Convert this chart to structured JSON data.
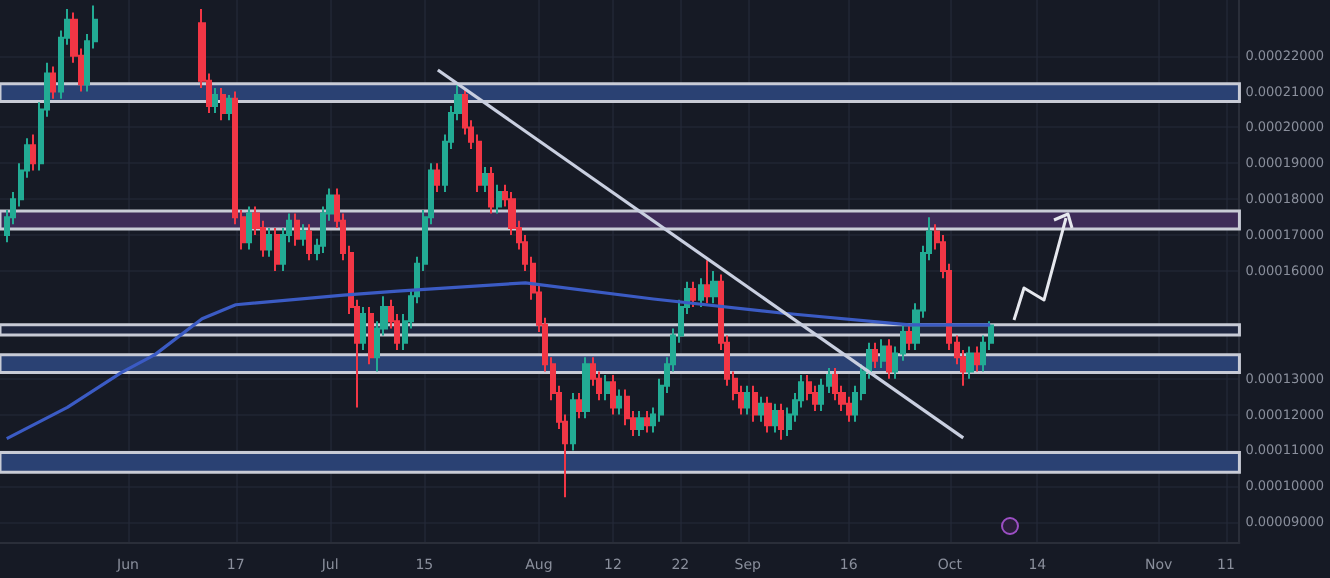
{
  "chart_data": {
    "type": "candlestick",
    "grid": true,
    "xlim": [
      "--05-13",
      "--11-13"
    ],
    "xticks": [
      {
        "value": "--06-01",
        "label": "Jun"
      },
      {
        "value": "--06-17",
        "label": "17"
      },
      {
        "value": "--07-01",
        "label": "Jul"
      },
      {
        "value": "--07-15",
        "label": "15"
      },
      {
        "value": "--08-01",
        "label": "Aug"
      },
      {
        "value": "--08-12",
        "label": "12"
      },
      {
        "value": "--08-22",
        "label": "22"
      },
      {
        "value": "--09-01",
        "label": "Sep"
      },
      {
        "value": "--09-16",
        "label": "16"
      },
      {
        "value": "--10-01",
        "label": "Oct"
      },
      {
        "value": "--10-14",
        "label": "14"
      },
      {
        "value": "--11-01",
        "label": "Nov"
      },
      {
        "value": "--11-11",
        "label": "11"
      }
    ],
    "ylim": [
      8.45e-05,
      0.0002355
    ],
    "yticks": [
      {
        "value": 9e-05,
        "label": "0.00009000"
      },
      {
        "value": 0.0001,
        "label": "0.00010000"
      },
      {
        "value": 0.00011,
        "label": "0.00011000"
      },
      {
        "value": 0.00012,
        "label": "0.00012000"
      },
      {
        "value": 0.00013,
        "label": "0.00013000"
      },
      {
        "value": 0.00016,
        "label": "0.00016000"
      },
      {
        "value": 0.00017,
        "label": "0.00017000"
      },
      {
        "value": 0.00018,
        "label": "0.00018000"
      },
      {
        "value": 0.00019,
        "label": "0.00019000"
      },
      {
        "value": 0.0002,
        "label": "0.00020000"
      },
      {
        "value": 0.00021,
        "label": "0.00021000"
      },
      {
        "value": 0.00022,
        "label": "0.00022000"
      }
    ],
    "x": [
      "--05-14",
      "--05-15",
      "--05-16",
      "--05-17",
      "--05-18",
      "--05-19",
      "--05-20",
      "--05-21",
      "--05-22",
      "--05-23",
      "--05-24",
      "--05-25",
      "--05-26",
      "--05-27",
      "--06-12",
      "--06-13",
      "--06-14",
      "--06-15",
      "--06-16",
      "--06-17",
      "--06-18",
      "--06-19",
      "--06-20",
      "--06-21",
      "--06-22",
      "--06-23",
      "--06-24",
      "--06-25",
      "--06-26",
      "--06-27",
      "--06-28",
      "--06-29",
      "--06-30",
      "--07-01",
      "--07-02",
      "--07-03",
      "--07-04",
      "--07-05",
      "--07-06",
      "--07-07",
      "--07-08",
      "--07-09",
      "--07-10",
      "--07-11",
      "--07-12",
      "--07-13",
      "--07-14",
      "--07-15",
      "--07-16",
      "--07-17",
      "--07-18",
      "--07-19",
      "--07-20",
      "--07-21",
      "--07-22",
      "--07-23",
      "--07-24",
      "--07-25",
      "--07-26",
      "--07-27",
      "--07-28",
      "--07-29",
      "--07-30",
      "--07-31",
      "--08-01",
      "--08-02",
      "--08-03",
      "--08-04",
      "--08-05",
      "--08-06",
      "--08-07",
      "--08-08",
      "--08-09",
      "--08-10",
      "--08-11",
      "--08-12",
      "--08-13",
      "--08-14",
      "--08-15",
      "--08-16",
      "--08-17",
      "--08-18",
      "--08-19",
      "--08-20",
      "--08-21",
      "--08-22",
      "--08-23",
      "--08-24",
      "--08-25",
      "--08-26",
      "--08-27",
      "--08-28",
      "--08-29",
      "--08-30",
      "--08-31",
      "--09-01",
      "--09-02",
      "--09-03",
      "--09-04",
      "--09-05",
      "--09-06",
      "--09-07",
      "--09-08",
      "--09-09",
      "--09-10",
      "--09-11",
      "--09-12",
      "--09-13",
      "--09-14",
      "--09-15",
      "--09-16",
      "--09-17",
      "--09-18",
      "--09-19",
      "--09-20",
      "--09-21",
      "--09-22",
      "--09-23",
      "--09-24",
      "--09-25",
      "--09-26",
      "--09-27",
      "--09-28",
      "--09-29",
      "--09-30",
      "--10-01",
      "--10-02",
      "--10-03",
      "--10-04",
      "--10-05",
      "--10-06",
      "--10-07"
    ],
    "ohlc": [
      [
        0.00017,
        0.000177,
        0.000168,
        0.000175
      ],
      [
        0.000175,
        0.000182,
        0.000173,
        0.00018
      ],
      [
        0.00018,
        0.00019,
        0.000178,
        0.000188
      ],
      [
        0.000188,
        0.000197,
        0.000186,
        0.000195
      ],
      [
        0.000195,
        0.000198,
        0.000188,
        0.00019
      ],
      [
        0.00019,
        0.000207,
        0.000188,
        0.000205
      ],
      [
        0.000205,
        0.000218,
        0.000203,
        0.000215
      ],
      [
        0.000215,
        0.000217,
        0.000208,
        0.00021
      ],
      [
        0.00021,
        0.000227,
        0.000208,
        0.000225
      ],
      [
        0.000225,
        0.000233,
        0.000223,
        0.00023
      ],
      [
        0.00023,
        0.000232,
        0.000218,
        0.00022
      ],
      [
        0.00022,
        0.000222,
        0.00021,
        0.000212
      ],
      [
        0.000212,
        0.000226,
        0.00021,
        0.000224
      ],
      [
        0.000224,
        0.000234,
        0.000222,
        0.00023
      ],
      [
        0.000229,
        0.000233,
        0.000211,
        0.000213
      ],
      [
        0.000213,
        0.000215,
        0.000204,
        0.000206
      ],
      [
        0.000206,
        0.000211,
        0.000204,
        0.000209
      ],
      [
        0.000209,
        0.000211,
        0.000202,
        0.000204
      ],
      [
        0.000204,
        0.000209,
        0.000202,
        0.000208
      ],
      [
        0.000208,
        0.00021,
        0.000173,
        0.000175
      ],
      [
        0.000175,
        0.000177,
        0.000166,
        0.000168
      ],
      [
        0.000168,
        0.000178,
        0.000166,
        0.000176
      ],
      [
        0.000176,
        0.000178,
        0.00017,
        0.000172
      ],
      [
        0.000172,
        0.000174,
        0.000164,
        0.000166
      ],
      [
        0.000166,
        0.000172,
        0.000164,
        0.00017
      ],
      [
        0.00017,
        0.000172,
        0.00016,
        0.000162
      ],
      [
        0.000162,
        0.000172,
        0.00016,
        0.00017
      ],
      [
        0.00017,
        0.000176,
        0.000168,
        0.000174
      ],
      [
        0.000174,
        0.000176,
        0.000167,
        0.000169
      ],
      [
        0.000169,
        0.000173,
        0.000167,
        0.000171
      ],
      [
        0.000171,
        0.000173,
        0.000163,
        0.000165
      ],
      [
        0.000165,
        0.000169,
        0.000163,
        0.000167
      ],
      [
        0.000167,
        0.000178,
        0.000165,
        0.000176
      ],
      [
        0.000176,
        0.000183,
        0.000174,
        0.000181
      ],
      [
        0.000181,
        0.000183,
        0.000172,
        0.000174
      ],
      [
        0.000174,
        0.000176,
        0.000163,
        0.000165
      ],
      [
        0.000165,
        0.000167,
        0.000148,
        0.00015
      ],
      [
        0.00015,
        0.000152,
        0.000122,
        0.00014
      ],
      [
        0.00014,
        0.00015,
        0.000138,
        0.000148
      ],
      [
        0.000148,
        0.00015,
        0.000134,
        0.000136
      ],
      [
        0.000136,
        0.000146,
        0.000132,
        0.000144
      ],
      [
        0.000144,
        0.000153,
        0.000142,
        0.00015
      ],
      [
        0.00015,
        0.000152,
        0.000144,
        0.000146
      ],
      [
        0.000146,
        0.000148,
        0.000138,
        0.00014
      ],
      [
        0.00014,
        0.000148,
        0.000138,
        0.000146
      ],
      [
        0.000146,
        0.000155,
        0.000144,
        0.000153
      ],
      [
        0.000153,
        0.000164,
        0.000151,
        0.000162
      ],
      [
        0.000162,
        0.000177,
        0.00016,
        0.000175
      ],
      [
        0.000175,
        0.00019,
        0.000173,
        0.000188
      ],
      [
        0.000188,
        0.00019,
        0.000182,
        0.000184
      ],
      [
        0.000184,
        0.000198,
        0.000182,
        0.000196
      ],
      [
        0.000196,
        0.000206,
        0.000194,
        0.000204
      ],
      [
        0.000204,
        0.000212,
        0.000202,
        0.000209
      ],
      [
        0.000209,
        0.000211,
        0.000198,
        0.0002
      ],
      [
        0.0002,
        0.000202,
        0.000194,
        0.000196
      ],
      [
        0.000196,
        0.000198,
        0.000182,
        0.000184
      ],
      [
        0.000184,
        0.000189,
        0.000182,
        0.000187
      ],
      [
        0.000187,
        0.000189,
        0.000176,
        0.000178
      ],
      [
        0.000178,
        0.000184,
        0.000176,
        0.000182
      ],
      [
        0.000182,
        0.000184,
        0.000178,
        0.00018
      ],
      [
        0.00018,
        0.000182,
        0.00017,
        0.000172
      ],
      [
        0.000172,
        0.000174,
        0.000166,
        0.000168
      ],
      [
        0.000168,
        0.00017,
        0.00016,
        0.000162
      ],
      [
        0.000162,
        0.000164,
        0.000152,
        0.000154
      ],
      [
        0.000154,
        0.000156,
        0.000143,
        0.000145
      ],
      [
        0.000145,
        0.000147,
        0.000132,
        0.000134
      ],
      [
        0.000134,
        0.000136,
        0.000124,
        0.000126
      ],
      [
        0.000126,
        0.000128,
        0.000116,
        0.000118
      ],
      [
        0.000118,
        0.00012,
        9.7e-05,
        0.000112
      ],
      [
        0.000112,
        0.000126,
        0.00011,
        0.000124
      ],
      [
        0.000124,
        0.000126,
        0.000119,
        0.000121
      ],
      [
        0.000121,
        0.000136,
        0.000119,
        0.000134
      ],
      [
        0.000134,
        0.000136,
        0.000128,
        0.00013
      ],
      [
        0.00013,
        0.000132,
        0.000124,
        0.000126
      ],
      [
        0.000126,
        0.000131,
        0.000124,
        0.000129
      ],
      [
        0.000129,
        0.000131,
        0.00012,
        0.000122
      ],
      [
        0.000122,
        0.000127,
        0.00012,
        0.000125
      ],
      [
        0.000125,
        0.000127,
        0.000117,
        0.000119
      ],
      [
        0.000119,
        0.000121,
        0.000114,
        0.000116
      ],
      [
        0.000116,
        0.000121,
        0.000114,
        0.000119
      ],
      [
        0.000119,
        0.000121,
        0.000115,
        0.000117
      ],
      [
        0.000117,
        0.000122,
        0.000115,
        0.00012
      ],
      [
        0.00012,
        0.00013,
        0.000118,
        0.000128
      ],
      [
        0.000128,
        0.000136,
        0.000126,
        0.000134
      ],
      [
        0.000134,
        0.000144,
        0.000132,
        0.000142
      ],
      [
        0.000142,
        0.000152,
        0.00014,
        0.00015
      ],
      [
        0.00015,
        0.000157,
        0.000148,
        0.000155
      ],
      [
        0.000155,
        0.000157,
        0.00015,
        0.000152
      ],
      [
        0.000152,
        0.000158,
        0.00015,
        0.000156
      ],
      [
        0.000156,
        0.000163,
        0.000151,
        0.000153
      ],
      [
        0.000153,
        0.00016,
        0.000151,
        0.000157
      ],
      [
        0.000157,
        0.000159,
        0.000138,
        0.00014
      ],
      [
        0.00014,
        0.000142,
        0.000128,
        0.00013
      ],
      [
        0.00013,
        0.000132,
        0.000124,
        0.000126
      ],
      [
        0.000126,
        0.000128,
        0.00012,
        0.000122
      ],
      [
        0.000122,
        0.000128,
        0.00012,
        0.000126
      ],
      [
        0.000126,
        0.000128,
        0.000118,
        0.00012
      ],
      [
        0.00012,
        0.000125,
        0.000118,
        0.000123
      ],
      [
        0.000123,
        0.000125,
        0.000115,
        0.000117
      ],
      [
        0.000117,
        0.000123,
        0.000115,
        0.000121
      ],
      [
        0.000121,
        0.000123,
        0.000113,
        0.000116
      ],
      [
        0.000116,
        0.000122,
        0.000114,
        0.00012
      ],
      [
        0.00012,
        0.000126,
        0.000118,
        0.000124
      ],
      [
        0.000124,
        0.000131,
        0.000122,
        0.000129
      ],
      [
        0.000129,
        0.000131,
        0.000124,
        0.000126
      ],
      [
        0.000126,
        0.000128,
        0.000121,
        0.000123
      ],
      [
        0.000123,
        0.00013,
        0.000121,
        0.000128
      ],
      [
        0.000128,
        0.000133,
        0.000126,
        0.000131
      ],
      [
        0.000131,
        0.000133,
        0.000124,
        0.000126
      ],
      [
        0.000126,
        0.000128,
        0.000121,
        0.000123
      ],
      [
        0.000123,
        0.000125,
        0.000118,
        0.00012
      ],
      [
        0.00012,
        0.000128,
        0.000118,
        0.000126
      ],
      [
        0.000126,
        0.000134,
        0.000124,
        0.000132
      ],
      [
        0.000132,
        0.00014,
        0.00013,
        0.000138
      ],
      [
        0.000138,
        0.00014,
        0.000133,
        0.000135
      ],
      [
        0.000135,
        0.000141,
        0.000133,
        0.000139
      ],
      [
        0.000139,
        0.000141,
        0.00013,
        0.000132
      ],
      [
        0.000132,
        0.000139,
        0.00013,
        0.000137
      ],
      [
        0.000137,
        0.000145,
        0.000135,
        0.000143
      ],
      [
        0.000143,
        0.000145,
        0.000138,
        0.00014
      ],
      [
        0.00014,
        0.000151,
        0.000138,
        0.000149
      ],
      [
        0.000149,
        0.000167,
        0.000147,
        0.000165
      ],
      [
        0.000165,
        0.000175,
        0.000163,
        0.000171
      ],
      [
        0.000171,
        0.000173,
        0.000166,
        0.000168
      ],
      [
        0.000168,
        0.00017,
        0.000158,
        0.00016
      ],
      [
        0.00016,
        0.000162,
        0.000138,
        0.00014
      ],
      [
        0.00014,
        0.000142,
        0.000134,
        0.000136
      ],
      [
        0.000136,
        0.000138,
        0.000128,
        0.000132
      ],
      [
        0.000132,
        0.000139,
        0.00013,
        0.000137
      ],
      [
        0.000137,
        0.000139,
        0.000132,
        0.000134
      ],
      [
        0.000134,
        0.000142,
        0.000132,
        0.00014
      ],
      [
        0.00014,
        0.000146,
        0.000138,
        0.0001448
      ]
    ],
    "series": [
      {
        "type": "line",
        "color": "#3b5bc4",
        "x": [
          "--05-14",
          "--05-23",
          "--05-31",
          "--06-05",
          "--06-12",
          "--06-17",
          "--07-03",
          "--07-11",
          "--07-30",
          "--08-18",
          "--09-06",
          "--09-25",
          "--10-07"
        ],
        "values": [
          0.0001133,
          0.000122,
          0.0001317,
          0.0001367,
          0.0001467,
          0.0001506,
          0.0001533,
          0.0001544,
          0.0001567,
          0.0001522,
          0.0001483,
          0.000145,
          0.000145
        ]
      },
      {
        "type": "line",
        "color": "#c9cfe0",
        "x": [
          "--07-17",
          "--10-03"
        ],
        "values": [
          0.000216,
          0.0001135
        ]
      }
    ],
    "bands": [
      {
        "axis": "y",
        "from": 0.0002072,
        "to": 0.0002122,
        "color": "#2a4173"
      },
      {
        "axis": "y",
        "from": 0.0001717,
        "to": 0.0001767,
        "color": "#3d2b58"
      },
      {
        "axis": "y",
        "from": 0.0001422,
        "to": 0.000145,
        "color": "#1f2740"
      },
      {
        "axis": "y",
        "from": 0.0001317,
        "to": 0.0001367,
        "color": "#2a4173"
      },
      {
        "axis": "y",
        "from": 0.0001039,
        "to": 0.0001094,
        "color": "#2a4173"
      }
    ]
  }
}
